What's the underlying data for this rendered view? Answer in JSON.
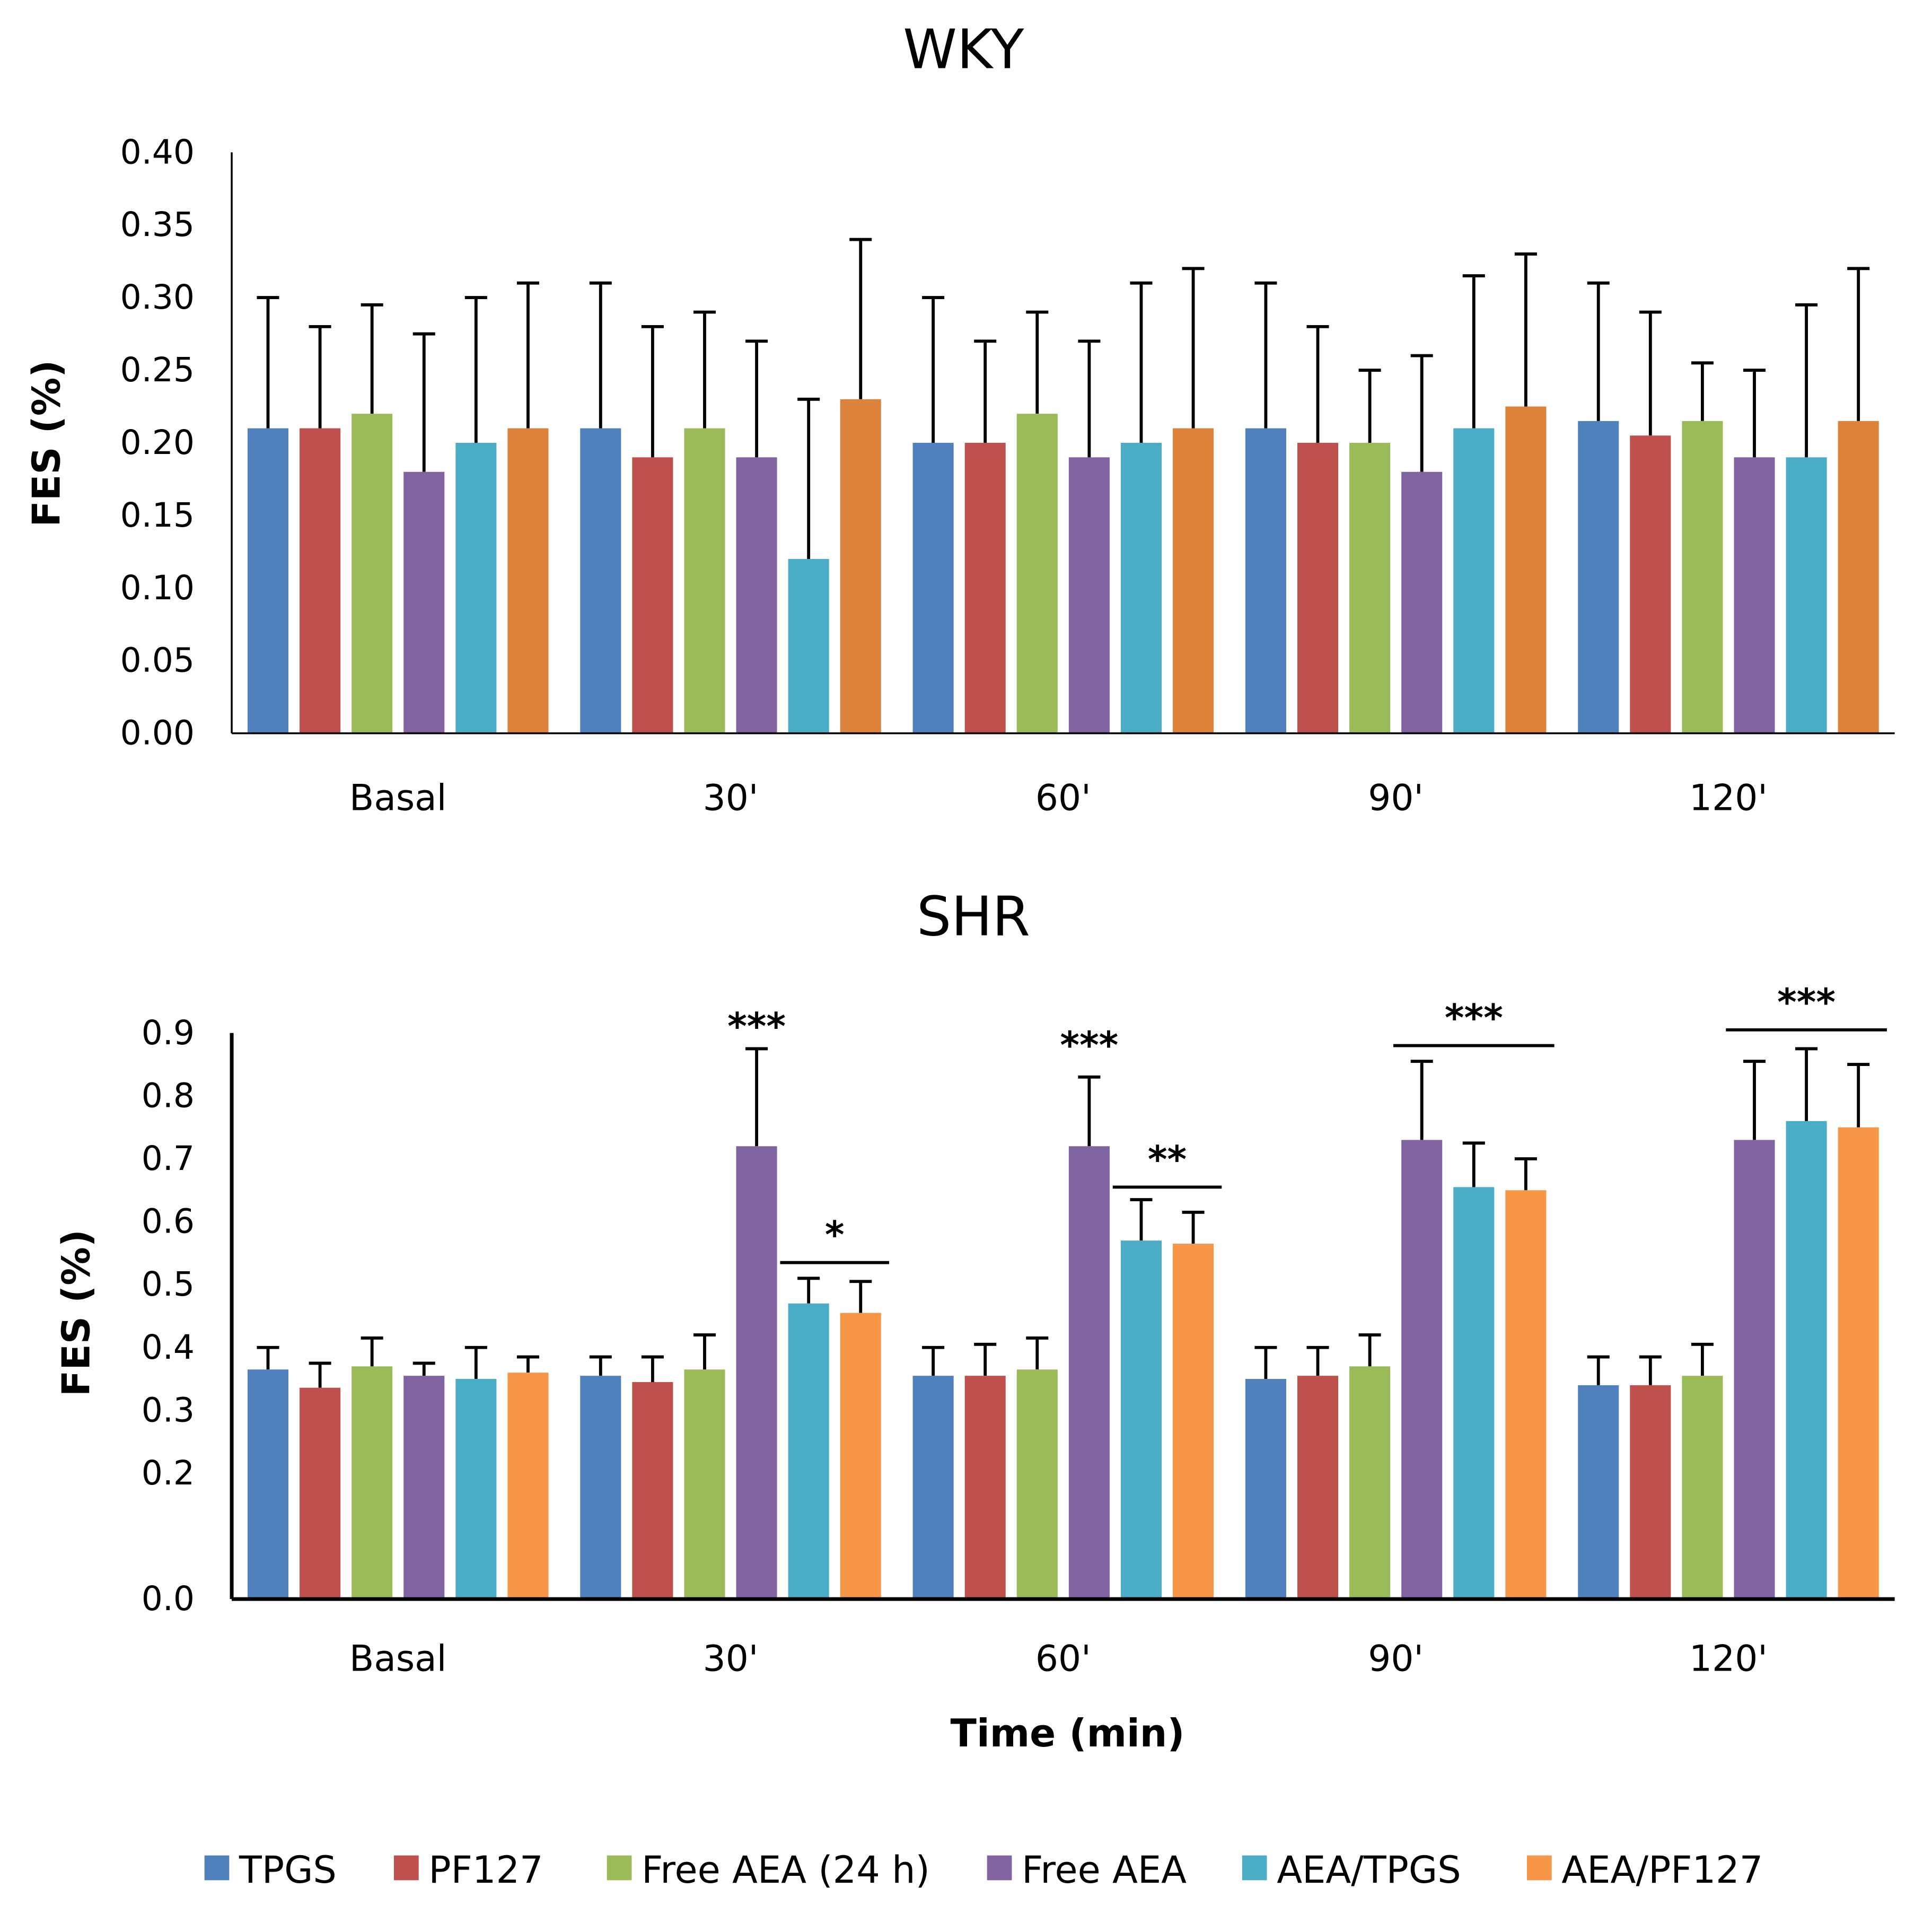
{
  "chart_data": [
    {
      "type": "bar",
      "title": "WKY",
      "xlabel": "",
      "ylabel": "FES (%)",
      "ylim": [
        0,
        0.4
      ],
      "yticks": [
        "0.00",
        "0.05",
        "0.10",
        "0.15",
        "0.20",
        "0.25",
        "0.30",
        "0.35",
        "0.40"
      ],
      "categories": [
        "Basal",
        "30'",
        "60'",
        "90'",
        "120'"
      ],
      "error_bars": "upper (mean + SD)",
      "series": [
        {
          "name": "TPGS",
          "values": [
            0.21,
            0.21,
            0.2,
            0.21,
            0.215
          ],
          "error_upper": [
            0.3,
            0.31,
            0.3,
            0.31,
            0.31
          ]
        },
        {
          "name": "PF127",
          "values": [
            0.21,
            0.19,
            0.2,
            0.2,
            0.205
          ],
          "error_upper": [
            0.28,
            0.28,
            0.27,
            0.28,
            0.29
          ]
        },
        {
          "name": "Free AEA (24 h)",
          "values": [
            0.22,
            0.21,
            0.22,
            0.2,
            0.215
          ],
          "error_upper": [
            0.295,
            0.29,
            0.29,
            0.25,
            0.255
          ]
        },
        {
          "name": "Free AEA",
          "values": [
            0.18,
            0.19,
            0.19,
            0.18,
            0.19
          ],
          "error_upper": [
            0.275,
            0.27,
            0.27,
            0.26,
            0.25
          ]
        },
        {
          "name": "AEA/TPGS",
          "values": [
            0.2,
            0.12,
            0.2,
            0.21,
            0.19
          ],
          "error_upper": [
            0.3,
            0.23,
            0.31,
            0.315,
            0.295
          ]
        },
        {
          "name": "AEA/PF127",
          "values": [
            0.21,
            0.23,
            0.21,
            0.225,
            0.215
          ],
          "error_upper": [
            0.31,
            0.34,
            0.32,
            0.33,
            0.32
          ]
        }
      ],
      "annotations": []
    },
    {
      "type": "bar",
      "title": "SHR",
      "xlabel": "Time (min)",
      "ylabel": "FES (%)",
      "ylim": [
        0,
        0.9
      ],
      "yticks": [
        "0.0",
        "0.2",
        "0.3",
        "0.4",
        "0.5",
        "0.6",
        "0.7",
        "0.8",
        "0.9"
      ],
      "categories": [
        "Basal",
        "30'",
        "60'",
        "90'",
        "120'"
      ],
      "error_bars": "upper (mean + SD)",
      "series": [
        {
          "name": "TPGS",
          "values": [
            0.365,
            0.355,
            0.355,
            0.35,
            0.34
          ],
          "error_upper": [
            0.4,
            0.385,
            0.4,
            0.4,
            0.385
          ]
        },
        {
          "name": "PF127",
          "values": [
            0.336,
            0.345,
            0.355,
            0.355,
            0.34
          ],
          "error_upper": [
            0.375,
            0.385,
            0.405,
            0.4,
            0.385
          ]
        },
        {
          "name": "Free AEA (24 h)",
          "values": [
            0.37,
            0.365,
            0.365,
            0.37,
            0.355
          ],
          "error_upper": [
            0.415,
            0.42,
            0.415,
            0.42,
            0.405
          ]
        },
        {
          "name": "Free AEA",
          "values": [
            0.355,
            0.72,
            0.72,
            0.73,
            0.73
          ],
          "error_upper": [
            0.375,
            0.875,
            0.83,
            0.855,
            0.855
          ]
        },
        {
          "name": "AEA/TPGS",
          "values": [
            0.35,
            0.47,
            0.57,
            0.655,
            0.76
          ],
          "error_upper": [
            0.4,
            0.51,
            0.635,
            0.725,
            0.875
          ]
        },
        {
          "name": "AEA/PF127",
          "values": [
            0.36,
            0.455,
            0.565,
            0.65,
            0.75
          ],
          "error_upper": [
            0.385,
            0.505,
            0.615,
            0.7,
            0.85
          ]
        }
      ],
      "annotations": [
        {
          "text": "***",
          "category": 1,
          "from": 3,
          "to": 3,
          "bracket": false,
          "level": 0.89
        },
        {
          "text": "*",
          "category": 1,
          "from": 4,
          "to": 5,
          "bracket": true,
          "level": 0.535
        },
        {
          "text": "***",
          "category": 2,
          "from": 3,
          "to": 3,
          "bracket": false,
          "level": 0.86
        },
        {
          "text": "**",
          "category": 2,
          "from": 4,
          "to": 5,
          "bracket": true,
          "level": 0.655
        },
        {
          "text": "***",
          "category": 3,
          "from": 3,
          "to": 5,
          "bracket": true,
          "level": 0.88
        },
        {
          "text": "***",
          "category": 4,
          "from": 3,
          "to": 5,
          "bracket": true,
          "level": 0.905
        }
      ]
    }
  ],
  "legend": {
    "placement": "bottom",
    "items": [
      {
        "label": "TPGS",
        "color": "#4f81bd"
      },
      {
        "label": "PF127",
        "color": "#c0504d"
      },
      {
        "label": "Free AEA (24 h)",
        "color": "#9bbb59"
      },
      {
        "label": "Free AEA",
        "color": "#8064a2"
      },
      {
        "label": "AEA/TPGS",
        "color": "#4bacc6"
      },
      {
        "label": "AEA/PF127",
        "color": "#f79646"
      }
    ]
  }
}
